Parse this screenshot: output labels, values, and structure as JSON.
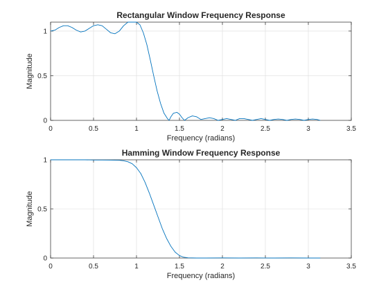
{
  "chart_data": [
    {
      "type": "line",
      "title": "Rectangular Window Frequency Response",
      "xlabel": "Frequency (radians)",
      "ylabel": "Magnitude",
      "xlim": [
        0,
        3.5
      ],
      "ylim": [
        0,
        1.1
      ],
      "xticks": [
        0,
        0.5,
        1,
        1.5,
        2,
        2.5,
        3,
        3.5
      ],
      "xtick_labels": [
        "0",
        "0.5",
        "1",
        "1.5",
        "2",
        "2.5",
        "3",
        "3.5"
      ],
      "yticks": [
        0,
        0.5,
        1
      ],
      "ytick_labels": [
        "0",
        "0.5",
        "1"
      ],
      "grid": true,
      "line_color": "#0072bd",
      "series": [
        {
          "x": [
            0,
            0.05,
            0.1,
            0.15,
            0.2,
            0.25,
            0.3,
            0.35,
            0.4,
            0.45,
            0.5,
            0.55,
            0.6,
            0.65,
            0.7,
            0.75,
            0.8,
            0.85,
            0.9,
            0.95,
            1.0,
            1.04,
            1.08,
            1.12,
            1.16,
            1.2,
            1.24,
            1.28,
            1.32,
            1.36,
            1.38,
            1.4,
            1.43,
            1.47,
            1.5,
            1.53,
            1.56,
            1.6,
            1.65,
            1.7,
            1.75,
            1.8,
            1.85,
            1.9,
            1.95,
            2.0,
            2.05,
            2.1,
            2.15,
            2.2,
            2.25,
            2.3,
            2.35,
            2.4,
            2.45,
            2.5,
            2.55,
            2.6,
            2.65,
            2.7,
            2.75,
            2.8,
            2.85,
            2.9,
            2.95,
            3.0,
            3.05,
            3.1,
            3.14
          ],
          "y": [
            1.0,
            1.01,
            1.04,
            1.06,
            1.06,
            1.04,
            1.01,
            0.99,
            1.0,
            1.03,
            1.06,
            1.07,
            1.06,
            1.02,
            0.98,
            0.97,
            1.0,
            1.06,
            1.1,
            1.11,
            1.1,
            1.07,
            0.98,
            0.85,
            0.68,
            0.5,
            0.33,
            0.19,
            0.08,
            0.02,
            0.0,
            0.04,
            0.08,
            0.09,
            0.07,
            0.03,
            0.0,
            0.03,
            0.05,
            0.04,
            0.01,
            0.02,
            0.03,
            0.02,
            0.0,
            0.01,
            0.02,
            0.01,
            0.0,
            0.02,
            0.02,
            0.01,
            0.0,
            0.01,
            0.02,
            0.01,
            0.0,
            0.01,
            0.015,
            0.01,
            0.0,
            0.01,
            0.015,
            0.01,
            0.0,
            0.01,
            0.015,
            0.01,
            0.0
          ]
        }
      ]
    },
    {
      "type": "line",
      "title": "Hamming Window Frequency Response",
      "xlabel": "Frequency (radians)",
      "ylabel": "Magnitude",
      "xlim": [
        0,
        3.5
      ],
      "ylim": [
        0,
        1
      ],
      "xticks": [
        0,
        0.5,
        1,
        1.5,
        2,
        2.5,
        3,
        3.5
      ],
      "xtick_labels": [
        "0",
        "0.5",
        "1",
        "1.5",
        "2",
        "2.5",
        "3",
        "3.5"
      ],
      "yticks": [
        0,
        0.5,
        1
      ],
      "ytick_labels": [
        "0",
        "0.5",
        "1"
      ],
      "grid": true,
      "line_color": "#0072bd",
      "series": [
        {
          "x": [
            0,
            0.1,
            0.2,
            0.3,
            0.4,
            0.5,
            0.6,
            0.7,
            0.8,
            0.85,
            0.9,
            0.95,
            1.0,
            1.05,
            1.1,
            1.15,
            1.2,
            1.25,
            1.3,
            1.35,
            1.4,
            1.45,
            1.5,
            1.55,
            1.6,
            1.7,
            1.8,
            2.0,
            2.2,
            2.4,
            2.6,
            2.8,
            3.0,
            3.14
          ],
          "y": [
            1.0,
            1.0,
            1.005,
            1.003,
            1.0,
            0.998,
            0.998,
            0.997,
            0.995,
            0.99,
            0.98,
            0.96,
            0.92,
            0.86,
            0.77,
            0.66,
            0.54,
            0.42,
            0.3,
            0.2,
            0.12,
            0.06,
            0.025,
            0.008,
            0.002,
            0.0,
            0.0,
            0.001,
            0.0,
            0.001,
            0.0,
            0.001,
            0.0,
            0.0
          ]
        }
      ]
    }
  ]
}
